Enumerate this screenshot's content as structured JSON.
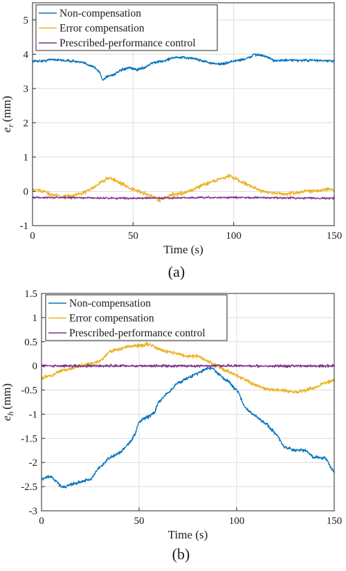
{
  "chart_data": [
    {
      "type": "line",
      "caption": "(a)",
      "xlabel": "Time (s)",
      "ylabel_base": "e",
      "ylabel_sub": "r",
      "ylabel_unit": "(mm)",
      "xlim": [
        0,
        150
      ],
      "ylim": [
        -1,
        5.5
      ],
      "xticks": [
        0,
        50,
        100,
        150
      ],
      "yticks": [
        -1,
        0,
        1,
        2,
        3,
        4,
        5
      ],
      "grid": true,
      "legend_position": "top-left",
      "noise": [
        0.035,
        0.05,
        0.025
      ],
      "series": [
        {
          "name": "Non-compensation",
          "color": "#0072BD",
          "points": [
            [
              0,
              3.8
            ],
            [
              5,
              3.8
            ],
            [
              10,
              3.85
            ],
            [
              15,
              3.82
            ],
            [
              20,
              3.8
            ],
            [
              25,
              3.75
            ],
            [
              30,
              3.65
            ],
            [
              33,
              3.5
            ],
            [
              35,
              3.25
            ],
            [
              37,
              3.35
            ],
            [
              40,
              3.4
            ],
            [
              45,
              3.55
            ],
            [
              48,
              3.6
            ],
            [
              52,
              3.55
            ],
            [
              55,
              3.6
            ],
            [
              60,
              3.75
            ],
            [
              65,
              3.8
            ],
            [
              70,
              3.9
            ],
            [
              75,
              3.9
            ],
            [
              80,
              3.88
            ],
            [
              85,
              3.8
            ],
            [
              90,
              3.72
            ],
            [
              95,
              3.72
            ],
            [
              100,
              3.8
            ],
            [
              105,
              3.85
            ],
            [
              108,
              3.9
            ],
            [
              110,
              4.0
            ],
            [
              115,
              3.95
            ],
            [
              120,
              3.82
            ],
            [
              130,
              3.82
            ],
            [
              140,
              3.82
            ],
            [
              150,
              3.8
            ]
          ]
        },
        {
          "name": "Error compensation",
          "color": "#EDB120",
          "points": [
            [
              0,
              0.05
            ],
            [
              5,
              0.0
            ],
            [
              10,
              -0.1
            ],
            [
              15,
              -0.15
            ],
            [
              20,
              -0.12
            ],
            [
              25,
              -0.05
            ],
            [
              30,
              0.1
            ],
            [
              35,
              0.3
            ],
            [
              38,
              0.4
            ],
            [
              40,
              0.35
            ],
            [
              45,
              0.2
            ],
            [
              50,
              0.05
            ],
            [
              55,
              -0.05
            ],
            [
              60,
              -0.15
            ],
            [
              63,
              -0.25
            ],
            [
              65,
              -0.2
            ],
            [
              70,
              -0.1
            ],
            [
              75,
              -0.05
            ],
            [
              80,
              0.05
            ],
            [
              85,
              0.2
            ],
            [
              90,
              0.3
            ],
            [
              95,
              0.4
            ],
            [
              98,
              0.45
            ],
            [
              100,
              0.4
            ],
            [
              105,
              0.25
            ],
            [
              110,
              0.1
            ],
            [
              115,
              0.0
            ],
            [
              120,
              -0.05
            ],
            [
              125,
              -0.08
            ],
            [
              130,
              -0.05
            ],
            [
              135,
              0.0
            ],
            [
              140,
              0.02
            ],
            [
              145,
              0.05
            ],
            [
              150,
              0.05
            ]
          ]
        },
        {
          "name": "Prescribed-performance control",
          "color": "#7E2F8E",
          "points": [
            [
              0,
              -0.18
            ],
            [
              50,
              -0.2
            ],
            [
              100,
              -0.18
            ],
            [
              150,
              -0.2
            ]
          ]
        }
      ]
    },
    {
      "type": "line",
      "caption": "(b)",
      "xlabel": "Time (s)",
      "ylabel_base": "e",
      "ylabel_sub": "h",
      "ylabel_unit": "(mm)",
      "xlim": [
        0,
        150
      ],
      "ylim": [
        -3,
        1.5
      ],
      "xticks": [
        0,
        50,
        100,
        150
      ],
      "yticks": [
        -3,
        -2.5,
        -2,
        -1.5,
        -1,
        -0.5,
        0,
        0.5,
        1,
        1.5
      ],
      "grid": true,
      "legend_position": "top-left",
      "noise": [
        0.03,
        0.035,
        0.025
      ],
      "series": [
        {
          "name": "Non-compensation",
          "color": "#0072BD",
          "points": [
            [
              0,
              -2.35
            ],
            [
              3,
              -2.3
            ],
            [
              5,
              -2.3
            ],
            [
              8,
              -2.4
            ],
            [
              10,
              -2.5
            ],
            [
              12,
              -2.5
            ],
            [
              15,
              -2.45
            ],
            [
              20,
              -2.4
            ],
            [
              25,
              -2.35
            ],
            [
              30,
              -2.1
            ],
            [
              35,
              -1.9
            ],
            [
              40,
              -1.8
            ],
            [
              45,
              -1.6
            ],
            [
              48,
              -1.4
            ],
            [
              50,
              -1.15
            ],
            [
              55,
              -1.05
            ],
            [
              58,
              -0.95
            ],
            [
              60,
              -0.75
            ],
            [
              65,
              -0.55
            ],
            [
              70,
              -0.35
            ],
            [
              75,
              -0.25
            ],
            [
              80,
              -0.15
            ],
            [
              85,
              -0.05
            ],
            [
              88,
              -0.05
            ],
            [
              90,
              -0.15
            ],
            [
              95,
              -0.3
            ],
            [
              100,
              -0.5
            ],
            [
              105,
              -0.9
            ],
            [
              110,
              -1.05
            ],
            [
              115,
              -1.2
            ],
            [
              120,
              -1.4
            ],
            [
              125,
              -1.7
            ],
            [
              130,
              -1.75
            ],
            [
              135,
              -1.75
            ],
            [
              140,
              -1.9
            ],
            [
              145,
              -1.9
            ],
            [
              150,
              -2.2
            ]
          ]
        },
        {
          "name": "Error compensation",
          "color": "#EDB120",
          "points": [
            [
              0,
              -0.25
            ],
            [
              5,
              -0.2
            ],
            [
              10,
              -0.1
            ],
            [
              15,
              -0.05
            ],
            [
              20,
              0.0
            ],
            [
              25,
              0.05
            ],
            [
              30,
              0.1
            ],
            [
              35,
              0.3
            ],
            [
              40,
              0.35
            ],
            [
              45,
              0.4
            ],
            [
              50,
              0.42
            ],
            [
              55,
              0.45
            ],
            [
              60,
              0.35
            ],
            [
              65,
              0.3
            ],
            [
              70,
              0.25
            ],
            [
              75,
              0.2
            ],
            [
              80,
              0.2
            ],
            [
              85,
              0.1
            ],
            [
              90,
              0.0
            ],
            [
              95,
              -0.1
            ],
            [
              100,
              -0.2
            ],
            [
              105,
              -0.3
            ],
            [
              110,
              -0.4
            ],
            [
              115,
              -0.48
            ],
            [
              120,
              -0.5
            ],
            [
              125,
              -0.52
            ],
            [
              130,
              -0.55
            ],
            [
              135,
              -0.5
            ],
            [
              140,
              -0.45
            ],
            [
              145,
              -0.35
            ],
            [
              150,
              -0.3
            ]
          ]
        },
        {
          "name": "Prescribed-performance control",
          "color": "#7E2F8E",
          "points": [
            [
              0,
              0.0
            ],
            [
              50,
              0.0
            ],
            [
              100,
              0.0
            ],
            [
              150,
              0.0
            ]
          ]
        }
      ]
    }
  ]
}
